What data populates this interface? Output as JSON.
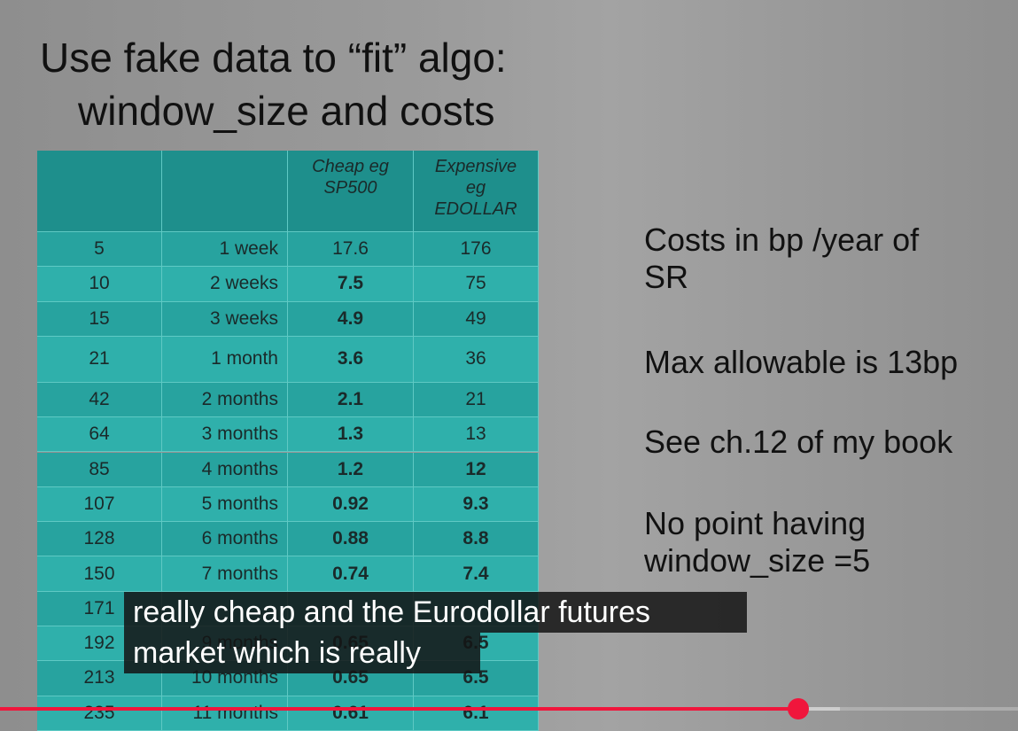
{
  "slide": {
    "title": [
      "Use fake data to “fit” algo:",
      "window_size and costs"
    ],
    "table": {
      "header": {
        "cheap": [
          "Cheap eg",
          "SP500"
        ],
        "expensive": [
          "Expensive",
          "eg",
          "EDOLLAR"
        ]
      },
      "rows": [
        [
          "5",
          "1 week",
          "17.6",
          "176"
        ],
        [
          "10",
          "2 weeks",
          "7.5",
          "75"
        ],
        [
          "15",
          "3 weeks",
          "4.9",
          "49"
        ],
        [
          "21",
          "1 month",
          "3.6",
          "36"
        ],
        [
          "42",
          "2 months",
          "2.1",
          "21"
        ],
        [
          "64",
          "3 months",
          "1.3",
          "13"
        ],
        [
          "85",
          "4 months",
          "1.2",
          "12"
        ],
        [
          "107",
          "5 months",
          "0.92",
          "9.3"
        ],
        [
          "128",
          "6 months",
          "0.88",
          "8.8"
        ],
        [
          "150",
          "7 months",
          "0.74",
          "7.4"
        ],
        [
          "171"
        ],
        [
          "192",
          "9 months",
          "0.65",
          "6.5"
        ],
        [
          "213",
          "10 months",
          "0.65",
          "6.5"
        ],
        [
          "235",
          "11 months",
          "0.61",
          "6.1"
        ]
      ]
    },
    "notes": [
      [
        "Costs in bp /year of",
        "SR"
      ],
      [
        "Max allowable is 13bp"
      ],
      [
        "See ch.12 of my book"
      ],
      [
        "No point having",
        "window_size =5"
      ]
    ]
  },
  "captions": [
    "really cheap and the Eurodollar futures",
    "market which is really"
  ]
}
